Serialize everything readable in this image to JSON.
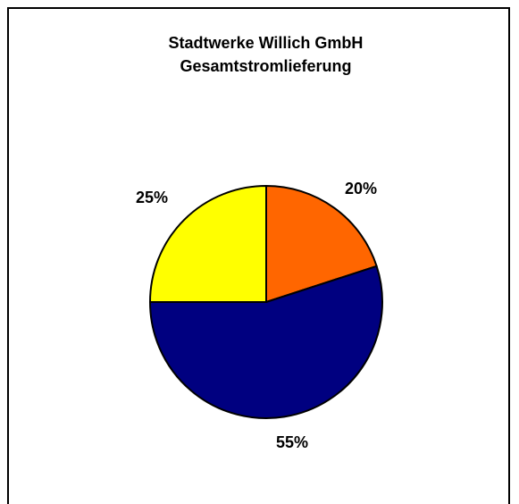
{
  "chart_data": {
    "type": "pie",
    "title": "Stadtwerke Willich GmbH",
    "subtitle": "Gesamtstromlieferung",
    "slices": [
      {
        "label": "20%",
        "value": 20,
        "color": "#ff6600"
      },
      {
        "label": "55%",
        "value": 55,
        "color": "#000080"
      },
      {
        "label": "25%",
        "value": 25,
        "color": "#ffff00"
      }
    ],
    "start": "top",
    "direction": "clockwise",
    "legend": "none"
  }
}
